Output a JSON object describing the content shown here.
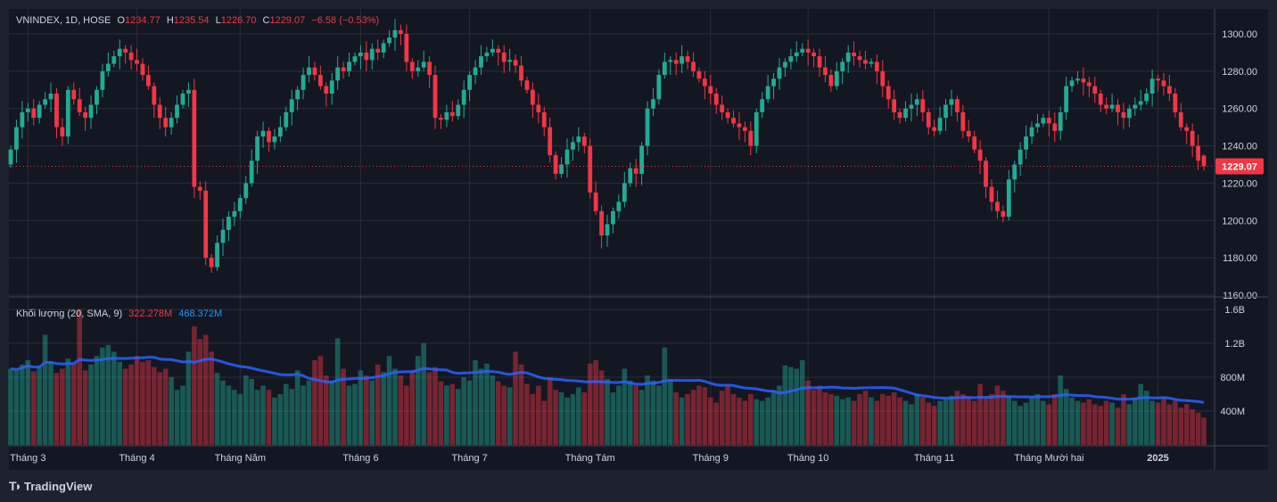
{
  "header": {
    "symbol": "VNINDEX, 1D, HOSE",
    "o_label": "O",
    "open": "1234.77",
    "h_label": "H",
    "high": "1235.54",
    "l_label": "L",
    "low": "1226.70",
    "c_label": "C",
    "close": "1229.07",
    "change": "−6.58 (−0.53%)"
  },
  "volume_legend": {
    "title": "Khối lượng (20, SMA, 9)",
    "volume": "322.278M",
    "sma": "468.372M"
  },
  "branding": "TradingView",
  "colors": {
    "up": "#22ab94",
    "down": "#f23645",
    "sma": "#2962ff",
    "bg": "#131722",
    "grid": "#2a2e39"
  },
  "chart_data": {
    "type": "candlestick",
    "title": "VNINDEX, 1D, HOSE",
    "last_price": 1229.07,
    "last_price_label": "1229.07",
    "last_open": 1234.77,
    "last_high": 1235.54,
    "last_low": 1226.7,
    "price_axis": {
      "ylim": [
        1160,
        1310
      ],
      "ticks": [
        "1160.00",
        "1180.00",
        "1200.00",
        "1220.00",
        "1240.00",
        "1260.00",
        "1280.00",
        "1300.00"
      ]
    },
    "volume_axis": {
      "ylim_millions": [
        0,
        1680
      ],
      "ticks": [
        {
          "label": "400M",
          "v": 400
        },
        {
          "label": "800M",
          "v": 800
        },
        {
          "label": "1.2B",
          "v": 1200
        },
        {
          "label": "1.6B",
          "v": 1600
        }
      ]
    },
    "volume_sma_period": 20,
    "time_labels": [
      {
        "label": "Tháng 3",
        "index": 3
      },
      {
        "label": "Tháng 4",
        "index": 22
      },
      {
        "label": "Tháng Năm",
        "index": 40
      },
      {
        "label": "Tháng 6",
        "index": 61
      },
      {
        "label": "Tháng 7",
        "index": 80
      },
      {
        "label": "Tháng Tám",
        "index": 101
      },
      {
        "label": "Tháng 9",
        "index": 122
      },
      {
        "label": "Tháng 10",
        "index": 139
      },
      {
        "label": "Tháng 11",
        "index": 161
      },
      {
        "label": "Tháng Mười hai",
        "index": 181
      },
      {
        "label": "2025",
        "index": 200,
        "bold": true
      }
    ],
    "first_open": 1230,
    "closes": [
      1238,
      1250,
      1258,
      1260,
      1255,
      1262,
      1265,
      1268,
      1250,
      1245,
      1270,
      1265,
      1258,
      1255,
      1262,
      1270,
      1280,
      1284,
      1288,
      1292,
      1290,
      1286,
      1284,
      1278,
      1272,
      1262,
      1255,
      1250,
      1255,
      1262,
      1268,
      1270,
      1218,
      1216,
      1180,
      1175,
      1188,
      1195,
      1202,
      1205,
      1212,
      1220,
      1232,
      1245,
      1248,
      1242,
      1245,
      1250,
      1258,
      1265,
      1270,
      1278,
      1282,
      1278,
      1272,
      1268,
      1275,
      1282,
      1280,
      1285,
      1288,
      1290,
      1286,
      1292,
      1290,
      1295,
      1298,
      1302,
      1300,
      1285,
      1280,
      1282,
      1285,
      1278,
      1255,
      1254,
      1258,
      1256,
      1262,
      1270,
      1278,
      1282,
      1288,
      1290,
      1292,
      1290,
      1285,
      1286,
      1283,
      1275,
      1270,
      1262,
      1258,
      1250,
      1235,
      1225,
      1230,
      1238,
      1242,
      1245,
      1240,
      1215,
      1205,
      1192,
      1198,
      1205,
      1210,
      1220,
      1228,
      1225,
      1240,
      1260,
      1265,
      1278,
      1285,
      1286,
      1284,
      1288,
      1285,
      1280,
      1276,
      1272,
      1268,
      1262,
      1258,
      1255,
      1252,
      1250,
      1248,
      1240,
      1258,
      1265,
      1272,
      1276,
      1282,
      1285,
      1288,
      1290,
      1292,
      1290,
      1288,
      1282,
      1278,
      1272,
      1280,
      1285,
      1290,
      1288,
      1286,
      1284,
      1285,
      1280,
      1272,
      1265,
      1258,
      1255,
      1260,
      1262,
      1265,
      1258,
      1250,
      1248,
      1255,
      1262,
      1265,
      1258,
      1248,
      1245,
      1238,
      1232,
      1218,
      1210,
      1205,
      1202,
      1222,
      1230,
      1238,
      1245,
      1250,
      1252,
      1255,
      1252,
      1248,
      1258,
      1272,
      1275,
      1276,
      1274,
      1272,
      1268,
      1262,
      1260,
      1262,
      1258,
      1255,
      1260,
      1262,
      1264,
      1268,
      1276,
      1275,
      1272,
      1268,
      1258,
      1250,
      1248,
      1240,
      1232,
      1229.07
    ],
    "volumes_millions": [
      900,
      880,
      950,
      1000,
      870,
      920,
      1300,
      980,
      850,
      900,
      1020,
      960,
      1600,
      880,
      950,
      1050,
      1150,
      1180,
      1100,
      980,
      900,
      950,
      1050,
      980,
      1000,
      920,
      860,
      900,
      800,
      650,
      700,
      1100,
      1400,
      1250,
      1300,
      1100,
      850,
      760,
      700,
      650,
      600,
      820,
      780,
      650,
      700,
      650,
      560,
      600,
      720,
      660,
      880,
      700,
      760,
      1000,
      1050,
      820,
      760,
      1260,
      900,
      700,
      720,
      880,
      820,
      760,
      950,
      860,
      1050,
      900,
      820,
      700,
      880,
      1050,
      1200,
      860,
      920,
      750,
      700,
      720,
      660,
      800,
      760,
      1000,
      900,
      960,
      820,
      750,
      700,
      680,
      1100,
      950,
      720,
      600,
      700,
      520,
      800,
      650,
      620,
      560,
      600,
      680,
      620,
      960,
      1000,
      880,
      780,
      620,
      700,
      900,
      760,
      700,
      650,
      820,
      760,
      700,
      1150,
      780,
      620,
      560,
      600,
      650,
      700,
      680,
      560,
      500,
      640,
      700,
      600,
      560,
      520,
      600,
      540,
      520,
      560,
      640,
      700,
      940,
      920,
      900,
      1000,
      760,
      650,
      700,
      620,
      600,
      580,
      540,
      560,
      520,
      600,
      640,
      560,
      520,
      600,
      580,
      620,
      560,
      520,
      480,
      600,
      560,
      500,
      460,
      520,
      540,
      580,
      640,
      600,
      560,
      520,
      720,
      560,
      600,
      700,
      640,
      580,
      520,
      460,
      500,
      560,
      600,
      520,
      480,
      600,
      820,
      660,
      560,
      520,
      500,
      540,
      480,
      460,
      520,
      500,
      440,
      600,
      480,
      560,
      720,
      640,
      520,
      500,
      560,
      480,
      520,
      440,
      480,
      420,
      380,
      322.278
    ]
  }
}
